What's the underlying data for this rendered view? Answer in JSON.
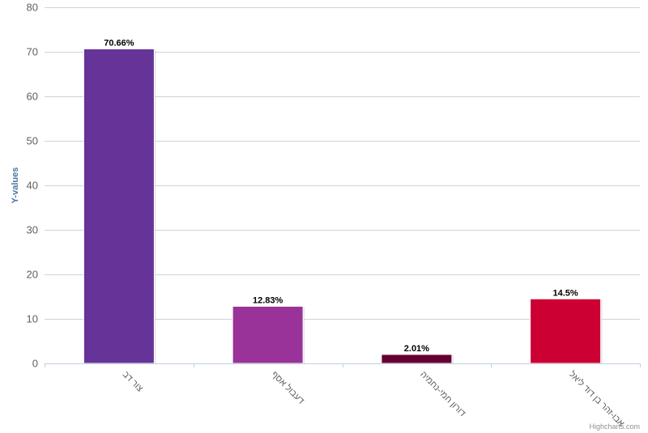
{
  "chart_data": {
    "type": "bar",
    "categories": [
      "צור דב",
      "דעבול אסף",
      "דורון חמי-נחמיה",
      "אבו-זהר בן דוד ליאל"
    ],
    "values": [
      70.66,
      12.83,
      2.01,
      14.5
    ],
    "data_labels": [
      "70.66%",
      "12.83%",
      "2.01%",
      "14.5%"
    ],
    "colors": [
      "#663399",
      "#993399",
      "#660033",
      "#cc0033"
    ],
    "ylabel": "Y-values",
    "ylim": [
      0,
      80
    ],
    "yticks": [
      0,
      10,
      20,
      30,
      40,
      50,
      60,
      70,
      80
    ],
    "grid": true,
    "legend": "none"
  },
  "credits": "Highcharts.com"
}
